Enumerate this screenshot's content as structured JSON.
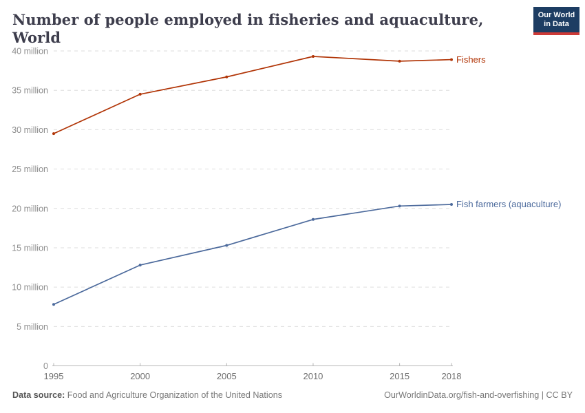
{
  "header": {
    "logo": {
      "line1": "Our World",
      "line2": "in Data",
      "bg_color": "#1d3d63",
      "bar_color": "#cd3a37"
    }
  },
  "chart_data": {
    "type": "line",
    "title": "Number of people employed in fisheries and aquaculture, World",
    "x": [
      1995,
      2000,
      2005,
      2010,
      2015,
      2018
    ],
    "x_tick_labels": [
      "1995",
      "2000",
      "2005",
      "2010",
      "2015",
      "2018"
    ],
    "y_ticks": [
      0,
      5,
      10,
      15,
      20,
      25,
      30,
      35,
      40
    ],
    "y_tick_labels": [
      "0",
      "5 million",
      "10 million",
      "15 million",
      "20 million",
      "25 million",
      "30 million",
      "35 million",
      "40 million"
    ],
    "xlim": [
      1995,
      2018
    ],
    "ylim": [
      0,
      41
    ],
    "unit": "million people",
    "grid": "horizontal dashed",
    "legend_position": "end-of-line labels",
    "series": [
      {
        "name": "Fishers",
        "color": "#b13507",
        "values": [
          29.5,
          34.5,
          36.7,
          39.3,
          38.7,
          38.9
        ]
      },
      {
        "name": "Fish farmers (aquaculture)",
        "color": "#4c6a9c",
        "values": [
          7.8,
          12.8,
          15.3,
          18.6,
          20.3,
          20.5
        ]
      }
    ]
  },
  "footer": {
    "datasource_label": "Data source:",
    "datasource_text": " Food and Agriculture Organization of the United Nations",
    "credit": "OurWorldinData.org/fish-and-overfishing | CC BY"
  }
}
